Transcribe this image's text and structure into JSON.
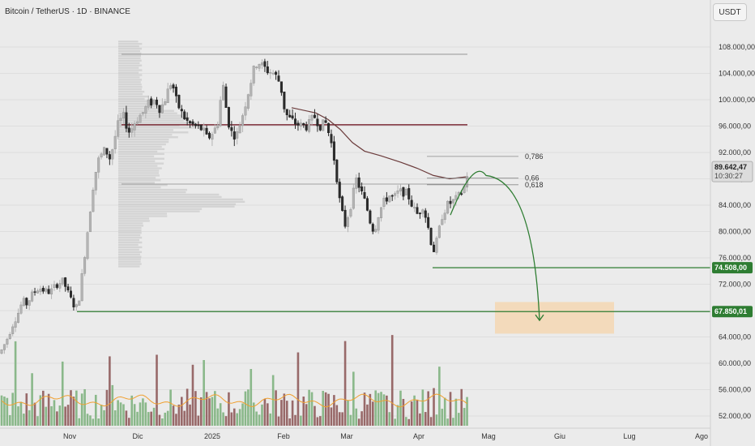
{
  "header": {
    "title": "Bitcoin / TetherUS · 1D · BINANCE",
    "currency_button": "USDT"
  },
  "colors": {
    "background": "#ebebeb",
    "candle_up": "#b4b4b4",
    "candle_down": "#2b2b2b",
    "volume_up": "#7fb27f",
    "volume_down": "#8f5b5b",
    "volume_ma": "#f0a030",
    "resistance_line": "#7b2b36",
    "moving_average": "#6b3b3b",
    "support_line": "#2e7d32",
    "projection": "#2e7d32",
    "target_zone": "#f5d7b3",
    "price_tag": "#5a5a5a"
  },
  "chart_data": {
    "type": "candlestick",
    "symbol": "BTC/USDT",
    "timeframe": "1D",
    "y_axis": {
      "ticks": [
        {
          "value": 108000,
          "label": "108.000,00"
        },
        {
          "value": 104000,
          "label": "104.000,00"
        },
        {
          "value": 100000,
          "label": "100.000,00"
        },
        {
          "value": 96000,
          "label": "96.000,00"
        },
        {
          "value": 92000,
          "label": "92.000,00"
        },
        {
          "value": 88000,
          "label": "88.000,00"
        },
        {
          "value": 84000,
          "label": "84.000,00"
        },
        {
          "value": 80000,
          "label": "80.000,00"
        },
        {
          "value": 76000,
          "label": "76.000,00"
        },
        {
          "value": 72000,
          "label": "72.000,00"
        },
        {
          "value": 68000,
          "label": "68.000,00"
        },
        {
          "value": 64000,
          "label": "64.000,00"
        },
        {
          "value": 60000,
          "label": "60.000,00"
        },
        {
          "value": 56000,
          "label": "56.000,00"
        },
        {
          "value": 52000,
          "label": "52.000,00"
        }
      ],
      "range": [
        50700,
        112800
      ]
    },
    "x_axis": {
      "labels": [
        "Nov",
        "Dic",
        "2025",
        "Feb",
        "Mar",
        "Apr",
        "Mag",
        "Giu",
        "Lug",
        "Ago"
      ]
    },
    "current_price": {
      "label": "89.642,47",
      "countdown": "10:30:27",
      "value": 89642
    },
    "price_tags": [
      {
        "label": "74.508,00",
        "value": 74508
      },
      {
        "label": "67.850,01",
        "value": 67850
      }
    ],
    "fibonacci_levels": [
      {
        "label": "0,786",
        "value": 91400
      },
      {
        "label": "0,66",
        "value": 88100
      },
      {
        "label": "0,618",
        "value": 87100
      }
    ],
    "horizontal_levels": [
      {
        "name": "range-high",
        "value": 106900
      },
      {
        "name": "resistance",
        "value": 96200
      },
      {
        "name": "poc",
        "value": 87200
      },
      {
        "name": "support-1",
        "value": 74508
      },
      {
        "name": "support-2",
        "value": 67850
      }
    ],
    "target_zone": {
      "from": 64500,
      "to": 69300
    },
    "projection_path": "rally to ~88,500 then decline toward ~66,500",
    "volume_ma_color": "orange",
    "grid": true
  }
}
